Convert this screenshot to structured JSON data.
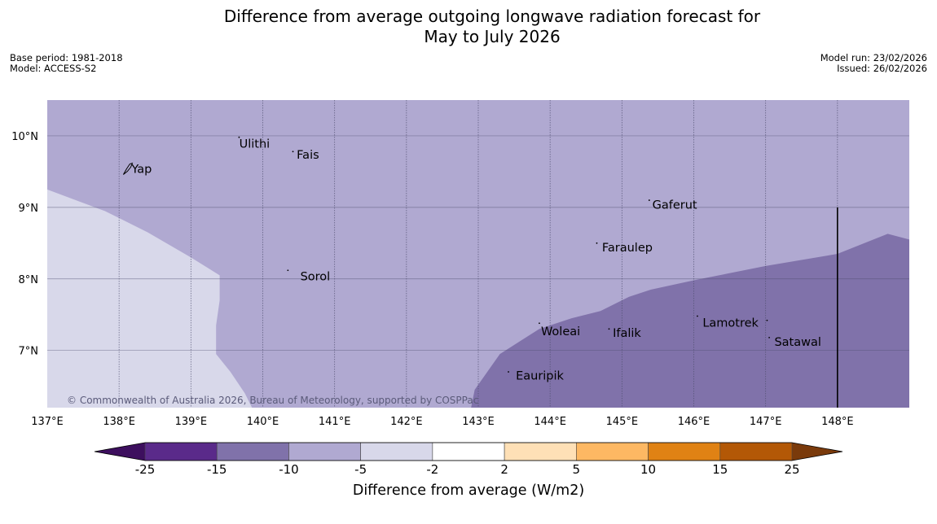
{
  "title": {
    "line1": "Difference from average outgoing longwave radiation forecast for",
    "line2": "May to July 2026"
  },
  "meta_left": {
    "base_period": "Base period: 1981-2018",
    "model": "Model: ACCESS-S2"
  },
  "meta_right": {
    "model_run": "Model run: 23/02/2026",
    "issued": "Issued: 26/02/2026"
  },
  "copyright": "© Commonwealth of Australia 2026, Bureau of Meteorology, supported by COSPPac",
  "map": {
    "lon_range": [
      137,
      149
    ],
    "lat_range": [
      6.2,
      10.5
    ],
    "lon_ticks": [
      {
        "value": 137,
        "label": "137°E"
      },
      {
        "value": 138,
        "label": "138°E"
      },
      {
        "value": 139,
        "label": "139°E"
      },
      {
        "value": 140,
        "label": "140°E"
      },
      {
        "value": 141,
        "label": "141°E"
      },
      {
        "value": 142,
        "label": "142°E"
      },
      {
        "value": 143,
        "label": "143°E"
      },
      {
        "value": 144,
        "label": "144°E"
      },
      {
        "value": 145,
        "label": "145°E"
      },
      {
        "value": 146,
        "label": "146°E"
      },
      {
        "value": 147,
        "label": "147°E"
      },
      {
        "value": 148,
        "label": "148°E"
      }
    ],
    "lat_ticks": [
      {
        "value": 10,
        "label": "10°N"
      },
      {
        "value": 9,
        "label": "9°N"
      },
      {
        "value": 8,
        "label": "8°N"
      },
      {
        "value": 7,
        "label": "7°N"
      }
    ],
    "base_fill": "#b0a9d1",
    "regions": [
      {
        "name": "region-light-west",
        "category": "-5 to -2",
        "color": "#d8d8ea",
        "polygon": [
          [
            137,
            9.25
          ],
          [
            137.4,
            9.1
          ],
          [
            137.8,
            8.95
          ],
          [
            138,
            8.85
          ],
          [
            138.4,
            8.65
          ],
          [
            139,
            8.3
          ],
          [
            139.4,
            8.05
          ],
          [
            139.4,
            7.7
          ],
          [
            139.35,
            7.35
          ],
          [
            139.35,
            6.95
          ],
          [
            139.55,
            6.7
          ],
          [
            139.75,
            6.4
          ],
          [
            139.85,
            6.2
          ],
          [
            137,
            6.2
          ]
        ]
      },
      {
        "name": "region-dark-southeast",
        "category": "-15 to -10",
        "color": "#8072aa",
        "polygon": [
          [
            142.9,
            6.2
          ],
          [
            142.95,
            6.45
          ],
          [
            143.3,
            6.95
          ],
          [
            143.85,
            7.3
          ],
          [
            144.3,
            7.45
          ],
          [
            144.7,
            7.55
          ],
          [
            145.1,
            7.75
          ],
          [
            145.4,
            7.85
          ],
          [
            146,
            7.98
          ],
          [
            147,
            8.18
          ],
          [
            148,
            8.35
          ],
          [
            148.7,
            8.63
          ],
          [
            149,
            8.55
          ],
          [
            149,
            6.2
          ]
        ]
      }
    ],
    "places": [
      {
        "name": "Ulithi",
        "lon": 139.65,
        "lat": 9.9
      },
      {
        "name": "Fais",
        "lon": 140.45,
        "lat": 9.75
      },
      {
        "name": "Yap",
        "lon": 138.15,
        "lat": 9.55
      },
      {
        "name": "Gaferut",
        "lon": 145.4,
        "lat": 9.05
      },
      {
        "name": "Faraulep",
        "lon": 144.7,
        "lat": 8.45
      },
      {
        "name": "Sorol",
        "lon": 140.5,
        "lat": 8.05
      },
      {
        "name": "Lamotrek",
        "lon": 146.1,
        "lat": 7.4
      },
      {
        "name": "Woleai",
        "lon": 143.85,
        "lat": 7.28
      },
      {
        "name": "Ifalik",
        "lon": 144.85,
        "lat": 7.26
      },
      {
        "name": "Satawal",
        "lon": 147.1,
        "lat": 7.13
      },
      {
        "name": "Eauripik",
        "lon": 143.5,
        "lat": 6.66
      }
    ]
  },
  "colorbar": {
    "title": "Difference from average (W/m2)",
    "under_color": "#3d0f5e",
    "over_color": "#7a3a0b",
    "bins": [
      {
        "color": "#5a2a8a"
      },
      {
        "color": "#8072aa"
      },
      {
        "color": "#b0a9d1"
      },
      {
        "color": "#d8d8ea"
      },
      {
        "color": "#ffffff"
      },
      {
        "color": "#fee0b6"
      },
      {
        "color": "#fdb863"
      },
      {
        "color": "#e08214"
      },
      {
        "color": "#b35806"
      }
    ],
    "tick_labels": [
      "-25",
      "-15",
      "-10",
      "-5",
      "-2",
      "2",
      "5",
      "10",
      "15",
      "25"
    ]
  }
}
